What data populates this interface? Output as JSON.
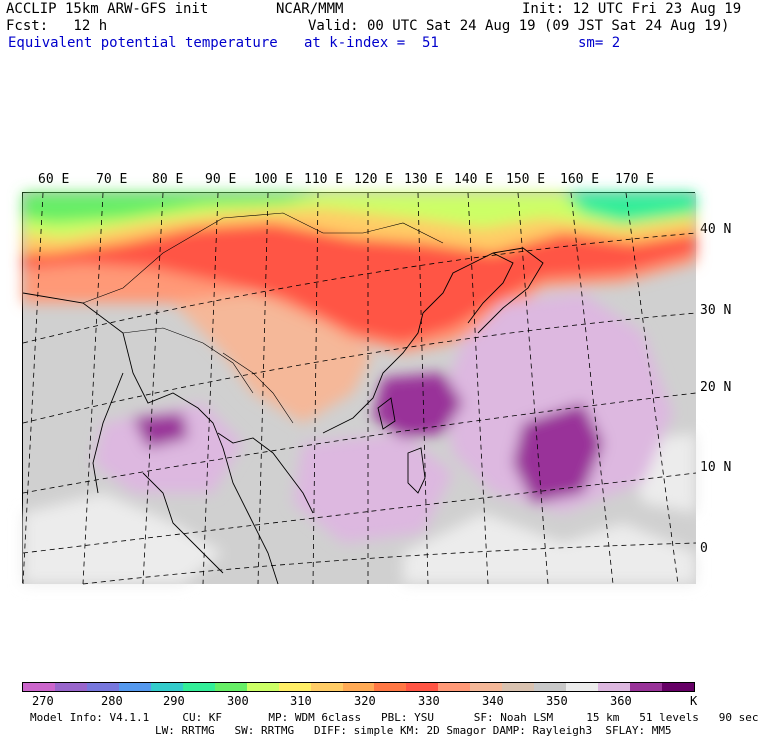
{
  "header": {
    "line1_left": "ACCLIP 15km ARW-GFS init",
    "line1_center": "NCAR/MMM",
    "line1_right": "Init: 12 UTC Fri 23 Aug 19",
    "line2_left": "Fcst:   12 h",
    "line2_right": "Valid: 00 UTC Sat 24 Aug 19 (09 JST Sat 24 Aug 19)",
    "line3_left": "Equivalent potential temperature",
    "line3_center": "at k-index =  51",
    "line3_right": "sm= 2"
  },
  "map": {
    "longitude_labels": [
      "60 E",
      "70 E",
      "80 E",
      "90 E",
      "100 E",
      "110 E",
      "120 E",
      "130 E",
      "140 E",
      "150 E",
      "160 E",
      "170 E"
    ],
    "latitude_labels": [
      "40 N",
      "30 N",
      "20 N",
      "10 N",
      "0"
    ]
  },
  "colorbar": {
    "colors": [
      "#cc66cc",
      "#9966cc",
      "#7777dd",
      "#5599ee",
      "#33cccc",
      "#33ee99",
      "#66ee66",
      "#ccff66",
      "#ffee66",
      "#ffcc66",
      "#ffaa55",
      "#ff7744",
      "#ff5544",
      "#ff9977",
      "#f5b899",
      "#d9c2b0",
      "#c8c8c8",
      "#ececec",
      "#ddb8e0",
      "#993399",
      "#660066"
    ],
    "tick_labels": [
      "270",
      "280",
      "290",
      "300",
      "310",
      "320",
      "330",
      "340",
      "350",
      "360"
    ],
    "unit": "K"
  },
  "footer": {
    "line1": "Model Info: V4.1.1     CU: KF       MP: WDM 6class   PBL: YSU      SF: Noah LSM     15 km   51 levels   90 sec",
    "line2": "LW: RRTMG   SW: RRTMG   DIFF: simple KM: 2D Smagor DAMP: Rayleigh3  SFLAY: MM5"
  }
}
